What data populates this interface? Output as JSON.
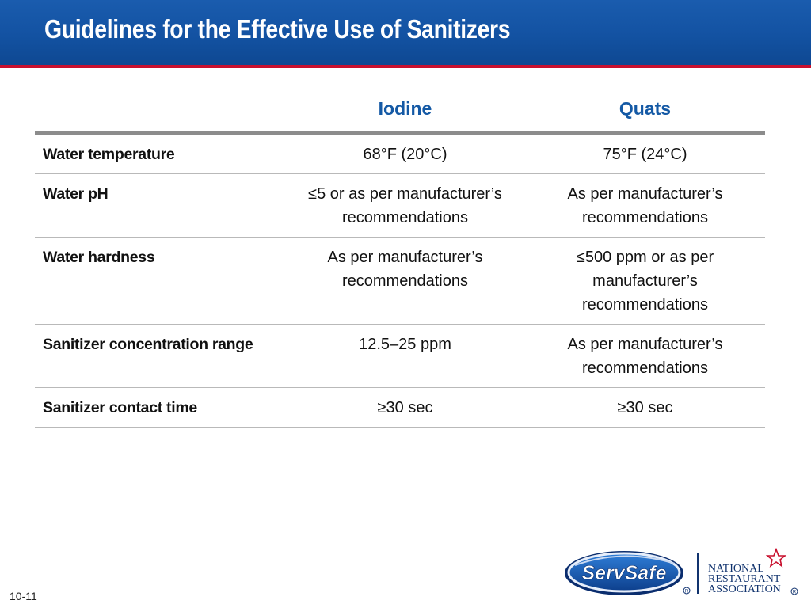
{
  "slide": {
    "title": "Guidelines for the Effective Use of Sanitizers",
    "page_number": "10-11"
  },
  "table": {
    "columns": [
      "",
      "Iodine",
      "Quats"
    ],
    "rows": [
      {
        "label": "Water temperature",
        "iodine": "68°F (20°C)",
        "quats": "75°F (24°C)"
      },
      {
        "label": "Water pH",
        "iodine": "≤5 or as per manufacturer’s recommendations",
        "quats": "As per manufacturer’s recommendations"
      },
      {
        "label": "Water hardness",
        "iodine": "As per manufacturer’s recommendations",
        "quats": "≤500 ppm or as per manufacturer’s recommendations"
      },
      {
        "label": "Sanitizer concentration range",
        "iodine": "12.5–25 ppm",
        "quats": "As per manufacturer’s recommendations"
      },
      {
        "label": "Sanitizer contact time",
        "iodine": "≥30 sec",
        "quats": "≥30 sec"
      }
    ]
  },
  "logos": {
    "servsafe": "ServSafe",
    "nra_line1": "NATIONAL",
    "nra_line2": "RESTAURANT",
    "nra_line3": "ASSOCIATION"
  },
  "colors": {
    "header_blue": "#1a5cae",
    "header_rule_red": "#c8102e",
    "column_header_blue": "#1459a5"
  }
}
